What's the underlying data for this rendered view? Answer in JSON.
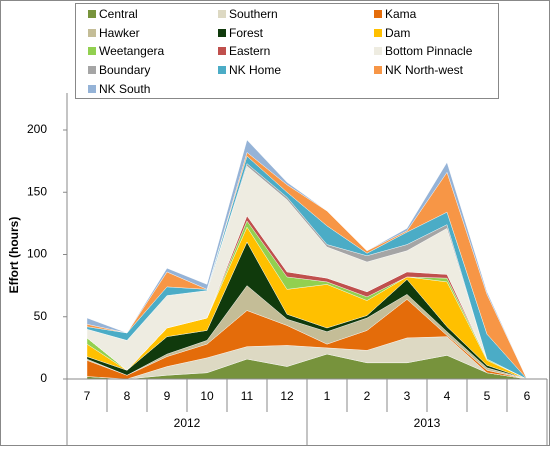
{
  "chart_data": {
    "type": "stacked-area",
    "y_label": "Effort (hours)",
    "category_groups": [
      {
        "name": "2012",
        "categories": [
          "7",
          "8",
          "9",
          "10",
          "11",
          "12"
        ]
      },
      {
        "name": "2013",
        "categories": [
          "1",
          "2",
          "3",
          "4",
          "5",
          "6"
        ]
      }
    ],
    "ylim": [
      0,
      200
    ],
    "yticks": [
      0,
      50,
      100,
      150,
      200
    ],
    "grid": false,
    "legend": "top",
    "series": [
      {
        "name": "Central",
        "color": "#77933c",
        "values": [
          2,
          0,
          3,
          5,
          16,
          10,
          20,
          13,
          13,
          19,
          5,
          0
        ]
      },
      {
        "name": "Southern",
        "color": "#ddd9c3",
        "values": [
          0,
          0,
          7,
          12,
          10,
          17,
          5,
          10,
          20,
          15,
          0,
          0
        ]
      },
      {
        "name": "Kama",
        "color": "#e46c0a",
        "values": [
          13,
          3,
          8,
          11,
          29,
          16,
          3,
          16,
          31,
          1,
          2,
          0
        ]
      },
      {
        "name": "Hawker",
        "color": "#c4bd97",
        "values": [
          1,
          0,
          2,
          3,
          20,
          5,
          10,
          10,
          4,
          3,
          2,
          0
        ]
      },
      {
        "name": "Forest",
        "color": "#103a0c",
        "values": [
          2,
          4,
          14,
          8,
          35,
          4,
          3,
          2,
          12,
          4,
          2,
          0
        ]
      },
      {
        "name": "Dam",
        "color": "#ffc000",
        "values": [
          10,
          0,
          7,
          10,
          12,
          20,
          35,
          12,
          2,
          36,
          4,
          0
        ]
      },
      {
        "name": "Weetangera",
        "color": "#92d050",
        "values": [
          5,
          0,
          0,
          0,
          5,
          10,
          2,
          3,
          0,
          3,
          1,
          0
        ]
      },
      {
        "name": "Eastern",
        "color": "#c0504d",
        "values": [
          0,
          0,
          0,
          0,
          4,
          4,
          3,
          4,
          4,
          3,
          0,
          0
        ]
      },
      {
        "name": "Bottom Pinnacle",
        "color": "#eeece1",
        "values": [
          7,
          24,
          26,
          22,
          40,
          58,
          25,
          24,
          17,
          37,
          0,
          0
        ]
      },
      {
        "name": "Boundary",
        "color": "#a5a5a5",
        "values": [
          0,
          0,
          0,
          0,
          2,
          2,
          2,
          5,
          5,
          3,
          0,
          0
        ]
      },
      {
        "name": "NK Home",
        "color": "#4bacc6",
        "values": [
          2,
          6,
          7,
          1,
          6,
          4,
          15,
          2,
          10,
          10,
          20,
          0
        ]
      },
      {
        "name": "NK North-west",
        "color": "#f79646",
        "values": [
          2,
          0,
          12,
          0,
          3,
          6,
          12,
          2,
          1,
          32,
          32,
          0
        ]
      },
      {
        "name": "NK South",
        "color": "#95b3d7",
        "values": [
          5,
          0,
          3,
          4,
          10,
          2,
          0,
          0,
          2,
          8,
          2,
          0
        ]
      }
    ]
  }
}
